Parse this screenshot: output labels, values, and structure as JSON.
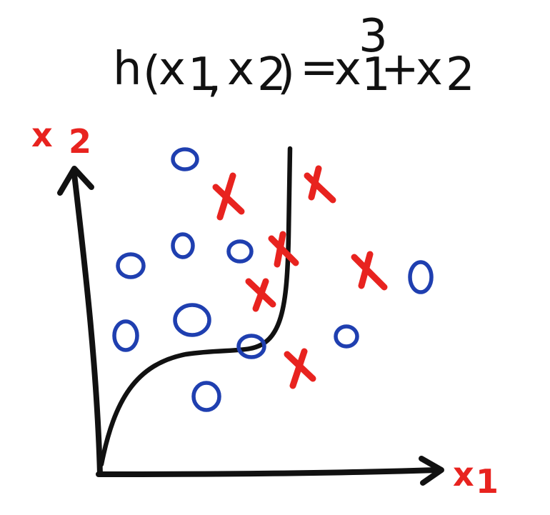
{
  "title": {
    "h": "h",
    "open_paren": "(",
    "x": "x",
    "sub1": "1",
    "comma": ",",
    "sub2": "2",
    "close_paren": ")",
    "equals": "=",
    "power": "3",
    "plus": "+"
  },
  "axes": {
    "x_label_main": "x",
    "x_label_sub": "1",
    "y_label_main": "x",
    "y_label_sub": "2"
  },
  "colors": {
    "ink": "#111111",
    "circle": "#1f3fb0",
    "cross": "#e8231f"
  },
  "legend_classes": [
    "circle",
    "cross"
  ]
}
